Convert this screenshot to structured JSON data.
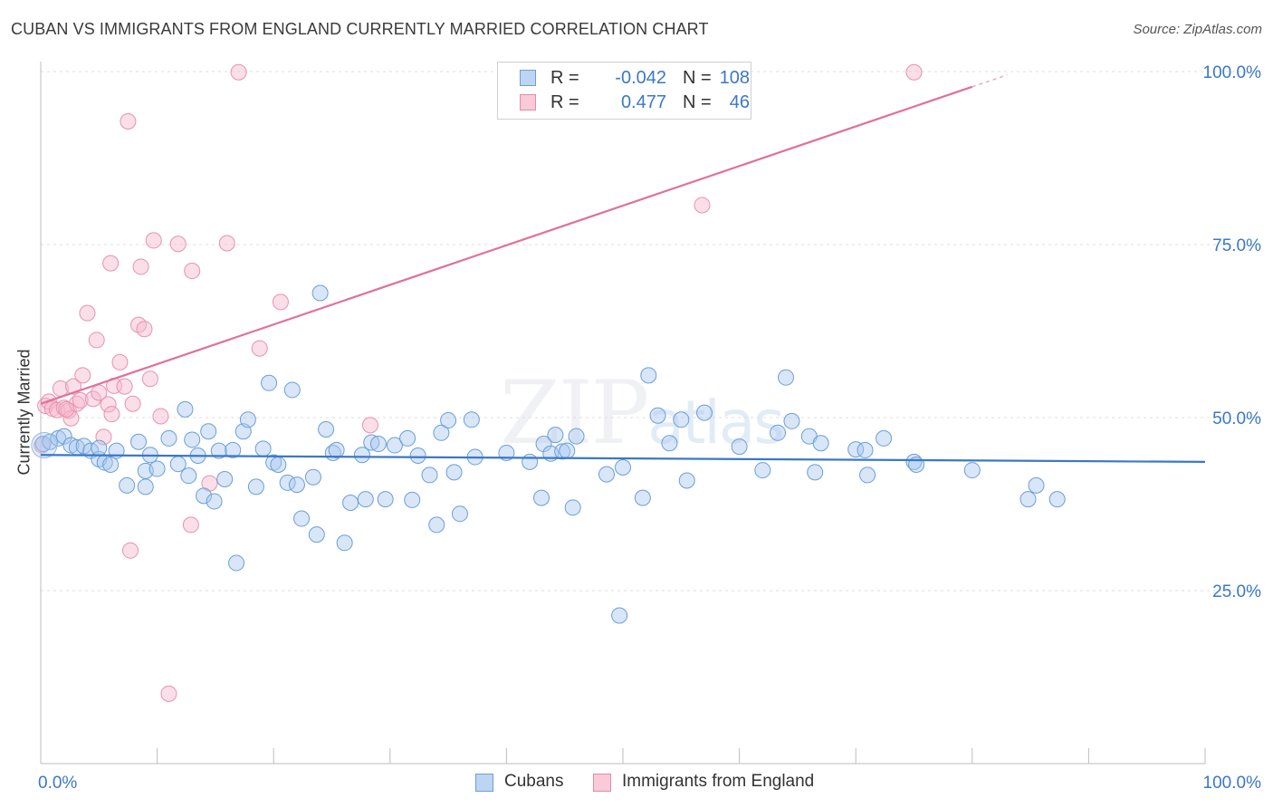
{
  "header": {
    "title": "CUBAN VS IMMIGRANTS FROM ENGLAND CURRENTLY MARRIED CORRELATION CHART",
    "source": "Source: ZipAtlas.com"
  },
  "watermark": {
    "zip": "ZIP",
    "atlas": "atlas"
  },
  "legend": {
    "rows": [
      {
        "r_label": "R =",
        "r_value": "-0.042",
        "n_label": "N =",
        "n_value": "108",
        "color": "#a8c8f0",
        "border": "#6a9fd8"
      },
      {
        "r_label": "R =",
        "r_value": "0.477",
        "n_label": "N =",
        "n_value": "46",
        "color": "#f6b8cc",
        "border": "#e48aa8"
      }
    ]
  },
  "bottom_legend": {
    "items": [
      {
        "label": "Cubans",
        "color": "#bcd5f3",
        "border": "#6a9fd8"
      },
      {
        "label": "Immigrants from England",
        "color": "#f9cad8",
        "border": "#e48aa8"
      }
    ]
  },
  "chart_data": {
    "type": "scatter",
    "title": "CUBAN VS IMMIGRANTS FROM ENGLAND CURRENTLY MARRIED CORRELATION CHART",
    "xlabel": "",
    "ylabel": "Currently Married",
    "xlim": [
      0,
      100
    ],
    "ylim": [
      0,
      100
    ],
    "x_tick_labels": [
      "0.0%",
      "100.0%"
    ],
    "y_ticks": [
      25,
      50,
      75,
      100
    ],
    "y_tick_labels": [
      "25.0%",
      "50.0%",
      "75.0%",
      "100.0%"
    ],
    "grid": true,
    "colors": {
      "cubans": "#3a78c8",
      "england": "#e0709a",
      "axis_text": "#3a78c8"
    },
    "series": [
      {
        "name": "Cubans",
        "trend": {
          "x0": 0,
          "y0": 44.6,
          "x1": 100,
          "y1": 43.6
        },
        "points": [
          [
            0.2,
            46.2
          ],
          [
            0.8,
            46.5
          ],
          [
            1.5,
            47.0
          ],
          [
            2.0,
            47.3
          ],
          [
            2.6,
            46.0
          ],
          [
            3.1,
            45.7
          ],
          [
            3.7,
            45.9
          ],
          [
            4.3,
            45.2
          ],
          [
            5.0,
            44.0
          ],
          [
            5.5,
            43.5
          ],
          [
            6.5,
            45.2
          ],
          [
            7.4,
            40.2
          ],
          [
            8.4,
            46.5
          ],
          [
            9.0,
            42.3
          ],
          [
            9.4,
            44.6
          ],
          [
            10.0,
            42.6
          ],
          [
            11.0,
            47.0
          ],
          [
            11.8,
            43.3
          ],
          [
            12.4,
            51.2
          ],
          [
            12.7,
            41.6
          ],
          [
            13.0,
            46.8
          ],
          [
            13.5,
            44.5
          ],
          [
            14.0,
            38.7
          ],
          [
            14.4,
            48.0
          ],
          [
            14.9,
            37.9
          ],
          [
            15.3,
            45.2
          ],
          [
            15.8,
            41.1
          ],
          [
            16.5,
            45.3
          ],
          [
            16.8,
            29.0
          ],
          [
            17.4,
            48.0
          ],
          [
            17.8,
            49.7
          ],
          [
            18.5,
            40.0
          ],
          [
            19.1,
            45.5
          ],
          [
            19.6,
            55.0
          ],
          [
            20.0,
            43.5
          ],
          [
            20.4,
            43.2
          ],
          [
            21.2,
            40.6
          ],
          [
            21.6,
            54.0
          ],
          [
            22.0,
            40.3
          ],
          [
            22.4,
            35.4
          ],
          [
            23.4,
            41.4
          ],
          [
            23.7,
            33.1
          ],
          [
            24.0,
            68.0
          ],
          [
            24.5,
            48.3
          ],
          [
            25.1,
            44.9
          ],
          [
            25.4,
            45.3
          ],
          [
            26.1,
            31.9
          ],
          [
            26.6,
            37.7
          ],
          [
            27.6,
            44.6
          ],
          [
            27.9,
            38.2
          ],
          [
            28.4,
            46.4
          ],
          [
            29.0,
            46.2
          ],
          [
            29.6,
            38.2
          ],
          [
            30.4,
            46.0
          ],
          [
            31.5,
            47.0
          ],
          [
            31.9,
            38.1
          ],
          [
            32.4,
            44.5
          ],
          [
            33.4,
            41.7
          ],
          [
            34.0,
            34.5
          ],
          [
            34.4,
            47.8
          ],
          [
            35.0,
            49.6
          ],
          [
            35.5,
            42.1
          ],
          [
            36.0,
            36.1
          ],
          [
            37.0,
            49.7
          ],
          [
            37.3,
            44.3
          ],
          [
            40.0,
            44.9
          ],
          [
            42.0,
            43.6
          ],
          [
            43.0,
            38.4
          ],
          [
            43.2,
            46.2
          ],
          [
            43.8,
            44.8
          ],
          [
            44.2,
            47.5
          ],
          [
            44.8,
            45.1
          ],
          [
            45.2,
            45.2
          ],
          [
            45.7,
            37.0
          ],
          [
            46.0,
            47.3
          ],
          [
            48.6,
            41.8
          ],
          [
            49.7,
            21.4
          ],
          [
            50.0,
            42.8
          ],
          [
            51.7,
            38.4
          ],
          [
            52.2,
            56.1
          ],
          [
            53.0,
            50.3
          ],
          [
            54.0,
            46.3
          ],
          [
            55.0,
            49.7
          ],
          [
            55.5,
            40.9
          ],
          [
            57.0,
            50.7
          ],
          [
            60.0,
            45.8
          ],
          [
            62.0,
            42.4
          ],
          [
            63.3,
            47.8
          ],
          [
            64.0,
            55.8
          ],
          [
            64.5,
            49.5
          ],
          [
            66.0,
            47.3
          ],
          [
            66.5,
            42.1
          ],
          [
            67.0,
            46.3
          ],
          [
            70.0,
            45.4
          ],
          [
            70.8,
            45.3
          ],
          [
            71.0,
            41.7
          ],
          [
            72.4,
            47.0
          ],
          [
            75.0,
            43.6
          ],
          [
            75.2,
            43.2
          ],
          [
            80.0,
            42.4
          ],
          [
            84.8,
            38.2
          ],
          [
            85.5,
            40.2
          ],
          [
            87.3,
            38.2
          ],
          [
            9.0,
            40.0
          ],
          [
            5.0,
            45.6
          ],
          [
            6.0,
            43.2
          ]
        ]
      },
      {
        "name": "Immigrants from England",
        "trend": {
          "x0": 0,
          "y0": 52.0,
          "x1": 80.0,
          "y1": 97.8,
          "dashed_to": [
            83.0,
            99.5
          ]
        },
        "points": [
          [
            0.1,
            46.0
          ],
          [
            0.4,
            51.7
          ],
          [
            0.7,
            52.3
          ],
          [
            1.0,
            51.3
          ],
          [
            1.4,
            51.1
          ],
          [
            1.7,
            54.2
          ],
          [
            2.0,
            51.4
          ],
          [
            2.4,
            51.0
          ],
          [
            2.6,
            49.9
          ],
          [
            2.8,
            54.5
          ],
          [
            3.1,
            52.0
          ],
          [
            3.4,
            52.5
          ],
          [
            3.6,
            56.1
          ],
          [
            4.0,
            65.1
          ],
          [
            4.5,
            52.7
          ],
          [
            4.8,
            61.2
          ],
          [
            5.0,
            53.6
          ],
          [
            5.4,
            47.2
          ],
          [
            5.8,
            51.9
          ],
          [
            6.0,
            72.3
          ],
          [
            6.1,
            50.5
          ],
          [
            6.3,
            54.6
          ],
          [
            6.8,
            58.0
          ],
          [
            7.2,
            54.5
          ],
          [
            7.5,
            92.8
          ],
          [
            7.7,
            30.8
          ],
          [
            7.9,
            52.0
          ],
          [
            8.4,
            63.4
          ],
          [
            8.6,
            71.8
          ],
          [
            8.9,
            62.8
          ],
          [
            9.4,
            55.6
          ],
          [
            9.7,
            75.6
          ],
          [
            10.3,
            50.2
          ],
          [
            11.0,
            10.1
          ],
          [
            11.8,
            75.1
          ],
          [
            12.9,
            34.5
          ],
          [
            13.0,
            71.2
          ],
          [
            14.5,
            40.5
          ],
          [
            16.0,
            75.2
          ],
          [
            17.0,
            99.9
          ],
          [
            18.8,
            60.0
          ],
          [
            20.6,
            66.7
          ],
          [
            28.3,
            48.9
          ],
          [
            56.8,
            80.7
          ],
          [
            75.0,
            99.9
          ],
          [
            2.2,
            51.2
          ]
        ]
      }
    ]
  }
}
